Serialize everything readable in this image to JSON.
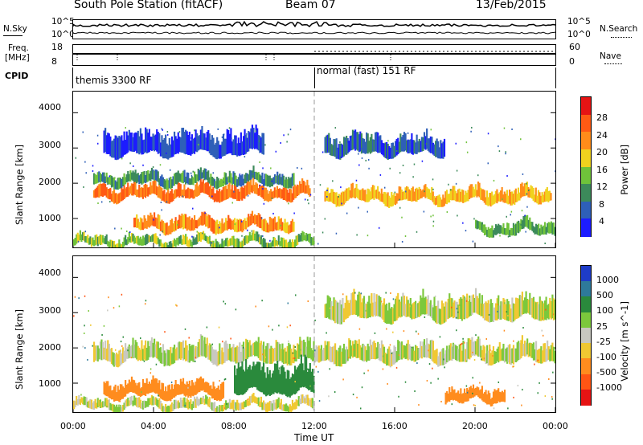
{
  "header": {
    "station": "South Pole Station (fitACF)",
    "beam": "Beam 07",
    "date": "13/Feb/2015"
  },
  "strips": {
    "nsky_label": "N.Sky",
    "nsky_ticks": [
      "10^5",
      "10^0"
    ],
    "nsearch_label": "N.Search",
    "nsearch_ticks": [
      "10^5",
      "10^0"
    ],
    "freq_label_1": "Freq.",
    "freq_label_2": "[MHz]",
    "freq_ticks": [
      "18",
      "8"
    ],
    "nave_label": "Nave",
    "nave_ticks": [
      "60",
      "0"
    ],
    "cpid_label": "CPID",
    "cpid_mode_1": "themis 3300 RF",
    "cpid_mode_2": "normal (fast) 151 RF"
  },
  "chart_data": [
    {
      "type": "heatmap",
      "quantity": "Power",
      "ylabel": "Slant Range [km]",
      "xlabel": "Time UT",
      "xlim": [
        0,
        24
      ],
      "ylim": [
        180,
        4600
      ],
      "x_ticks": [
        "00:00",
        "04:00",
        "08:00",
        "12:00",
        "16:00",
        "20:00",
        "00:00"
      ],
      "y_ticks": [
        1000,
        2000,
        3000,
        4000
      ],
      "colorbar_label": "Power [dB]",
      "colorbar_ticks": [
        4,
        8,
        12,
        16,
        20,
        24,
        28
      ],
      "colorbar_colors": [
        "#1c1cff",
        "#2e5fb8",
        "#3c8a5a",
        "#6fc23a",
        "#f0d21e",
        "#ff8c1a",
        "#ff5a14",
        "#e61414"
      ],
      "bands": [
        {
          "t0": 1.0,
          "t1": 11.8,
          "r0": 1550,
          "r1": 1900,
          "level": 26
        },
        {
          "t0": 12.5,
          "t1": 23.8,
          "r0": 1450,
          "r1": 1800,
          "level": 22
        },
        {
          "t0": 1.0,
          "t1": 11.0,
          "r0": 1950,
          "r1": 2250,
          "level": 12
        },
        {
          "t0": 3.0,
          "t1": 11.0,
          "r0": 650,
          "r1": 1000,
          "level": 24
        },
        {
          "t0": 1.5,
          "t1": 9.5,
          "r0": 2800,
          "r1": 3400,
          "level": 6
        },
        {
          "t0": 12.5,
          "t1": 18.5,
          "r0": 2800,
          "r1": 3300,
          "level": 8
        },
        {
          "t0": 0.0,
          "t1": 12.0,
          "r0": 200,
          "r1": 450,
          "level": 16
        },
        {
          "t0": 20.0,
          "t1": 24.0,
          "r0": 550,
          "r1": 850,
          "level": 14
        }
      ]
    },
    {
      "type": "heatmap",
      "quantity": "Velocity",
      "ylabel": "Slant Range [km]",
      "xlabel": "Time UT",
      "xlim": [
        0,
        24
      ],
      "ylim": [
        180,
        4600
      ],
      "x_ticks": [
        "00:00",
        "04:00",
        "08:00",
        "12:00",
        "16:00",
        "20:00",
        "00:00"
      ],
      "y_ticks": [
        1000,
        2000,
        3000,
        4000
      ],
      "colorbar_label": "Velocity [m s^-1]",
      "colorbar_ticks": [
        1000,
        500,
        100,
        25,
        -25,
        -100,
        -500,
        -1000
      ],
      "colorbar_colors": [
        "#1e3cc8",
        "#2e7a9a",
        "#2a8a3c",
        "#7cc83c",
        "#c8c8c0",
        "#f0c832",
        "#ff8c1e",
        "#ff5514",
        "#e61414"
      ],
      "bands": [
        {
          "t0": 1.0,
          "t1": 24.0,
          "r0": 1600,
          "r1": 2100,
          "level": 0
        },
        {
          "t0": 1.5,
          "t1": 7.5,
          "r0": 600,
          "r1": 1000,
          "level": -300
        },
        {
          "t0": 8.0,
          "t1": 12.0,
          "r0": 700,
          "r1": 1500,
          "level": 300
        },
        {
          "t0": 12.5,
          "t1": 24.0,
          "r0": 2800,
          "r1": 3400,
          "level": 0
        },
        {
          "t0": 18.5,
          "t1": 21.5,
          "r0": 450,
          "r1": 800,
          "level": -300
        },
        {
          "t0": 0.0,
          "t1": 12.0,
          "r0": 250,
          "r1": 500,
          "level": 0
        }
      ]
    }
  ]
}
